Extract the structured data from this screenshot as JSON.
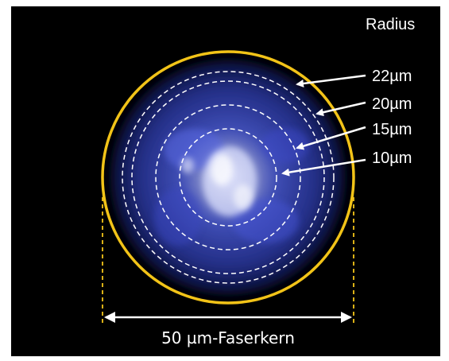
{
  "legend_title": "Radius",
  "radius_labels": [
    {
      "text": "22µm",
      "radius_um": 22
    },
    {
      "text": "20µm",
      "radius_um": 20
    },
    {
      "text": "15µm",
      "radius_um": 15
    },
    {
      "text": "10µm",
      "radius_um": 10
    }
  ],
  "caption": "50 µm-Faserkern",
  "colors": {
    "background": "#000000",
    "core_outline": "#f2c318",
    "radius_circles": "#ffffff",
    "intensity_glow": "#3a4fd0",
    "arrows": "#ffffff"
  }
}
